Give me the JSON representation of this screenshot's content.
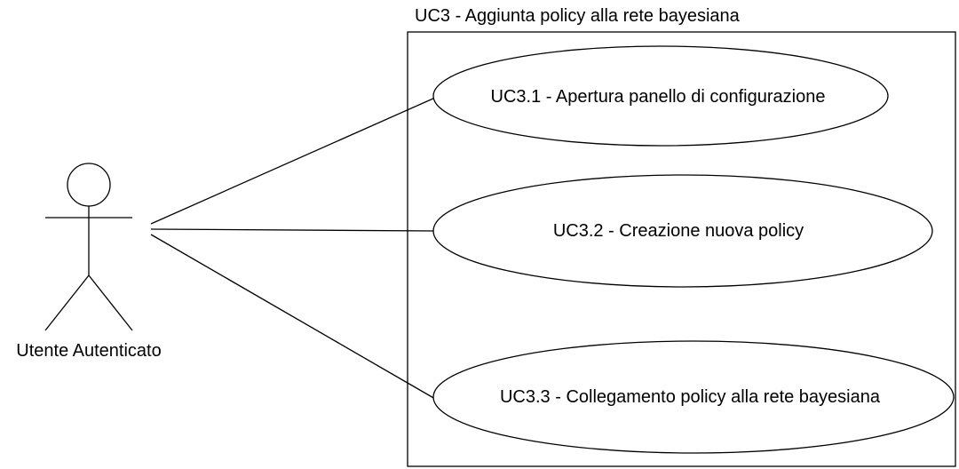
{
  "diagram": {
    "system": {
      "title": "UC3 - Aggiunta policy alla rete bayesiana"
    },
    "actor": {
      "name": "Utente Autenticato"
    },
    "use_cases": [
      {
        "label": "UC3.1 - Apertura panello di configurazione"
      },
      {
        "label": "UC3.2 - Creazione nuova policy"
      },
      {
        "label": "UC3.3 - Collegamento policy alla rete bayesiana"
      }
    ]
  }
}
